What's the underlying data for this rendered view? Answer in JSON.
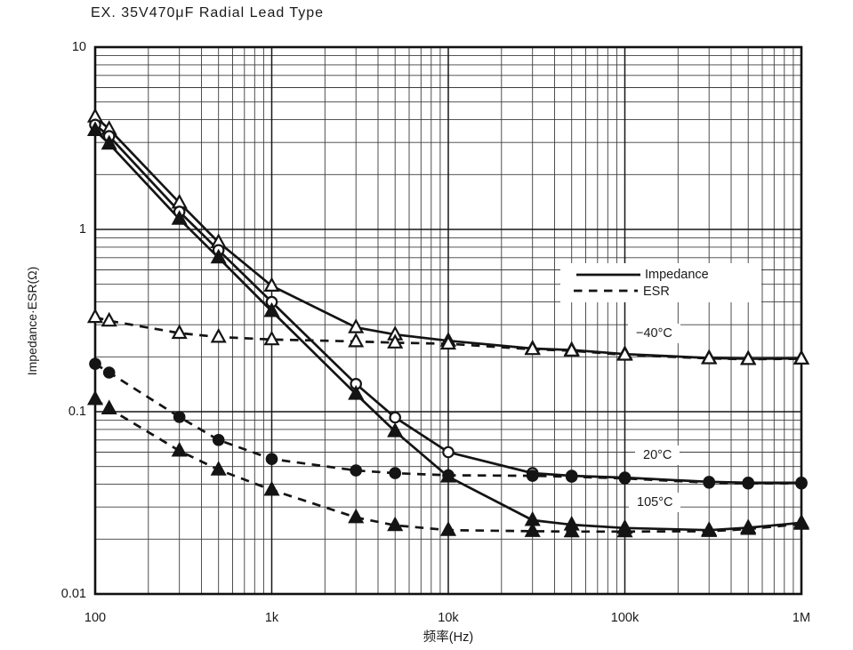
{
  "chart_data": {
    "type": "line",
    "title": "EX. 35V470μF Radial Lead Type",
    "xlabel": "频率(Hz)",
    "ylabel": "Impedance·ESR(Ω)",
    "x_scale": "log",
    "y_scale": "log",
    "xlim": [
      100,
      1000000
    ],
    "ylim": [
      0.01,
      10
    ],
    "grid": true,
    "x_ticks": [
      {
        "value": 100,
        "label": "100"
      },
      {
        "value": 1000,
        "label": "1k"
      },
      {
        "value": 10000,
        "label": "10k"
      },
      {
        "value": 100000,
        "label": "100k"
      },
      {
        "value": 1000000,
        "label": "1M"
      }
    ],
    "y_ticks": [
      {
        "value": 10,
        "label": "10"
      },
      {
        "value": 1,
        "label": "1"
      },
      {
        "value": 0.1,
        "label": "0.1"
      },
      {
        "value": 0.01,
        "label": "0.01"
      }
    ],
    "legend": {
      "position": "inside-upper-right",
      "items": [
        {
          "label": "Impedance",
          "line": "solid"
        },
        {
          "label": "ESR",
          "line": "dashed"
        }
      ]
    },
    "annotations": [
      {
        "text": "−40°C"
      },
      {
        "text": "20°C"
      },
      {
        "text": "105°C"
      }
    ],
    "x": [
      100,
      120,
      300,
      500,
      1000,
      3000,
      5000,
      10000,
      30000,
      50000,
      100000,
      300000,
      500000,
      1000000
    ],
    "series": [
      {
        "name": "ESR −40°C",
        "quantity": "ESR",
        "temperature": "−40°C",
        "line": "dashed",
        "marker": "triangle-open",
        "values": [
          0.33,
          0.315,
          0.27,
          0.257,
          0.249,
          0.243,
          0.239,
          0.236,
          0.22,
          0.216,
          0.205,
          0.196,
          0.194,
          0.195
        ]
      },
      {
        "name": "ESR 20°C",
        "quantity": "ESR",
        "temperature": "20°C",
        "line": "dashed",
        "marker": "circle-filled",
        "values": [
          0.183,
          0.164,
          0.0935,
          0.07,
          0.055,
          0.0476,
          0.046,
          0.0448,
          0.0445,
          0.044,
          0.043,
          0.0408,
          0.0404,
          0.0404
        ]
      },
      {
        "name": "ESR 105°C",
        "quantity": "ESR",
        "temperature": "105°C",
        "line": "dashed",
        "marker": "triangle-filled",
        "values": [
          0.117,
          0.104,
          0.061,
          0.048,
          0.0372,
          0.0263,
          0.0238,
          0.0224,
          0.0221,
          0.022,
          0.022,
          0.0221,
          0.0227,
          0.0242
        ]
      },
      {
        "name": "Impedance −40°C",
        "quantity": "Impedance",
        "temperature": "−40°C",
        "line": "solid",
        "marker": "triangle-open",
        "values": [
          4.15,
          3.55,
          1.4,
          0.85,
          0.49,
          0.29,
          0.265,
          0.245,
          0.222,
          0.218,
          0.207,
          0.197,
          0.195,
          0.196
        ]
      },
      {
        "name": "Impedance 20°C",
        "quantity": "Impedance",
        "temperature": "20°C",
        "line": "solid",
        "marker": "circle-open",
        "values": [
          3.75,
          3.25,
          1.25,
          0.77,
          0.4,
          0.142,
          0.093,
          0.06,
          0.046,
          0.0445,
          0.0435,
          0.0412,
          0.0408,
          0.0408
        ]
      },
      {
        "name": "Impedance 105°C",
        "quantity": "Impedance",
        "temperature": "105°C",
        "line": "solid",
        "marker": "triangle-filled",
        "values": [
          3.5,
          2.95,
          1.14,
          0.7,
          0.356,
          0.125,
          0.078,
          0.044,
          0.0254,
          0.024,
          0.023,
          0.0224,
          0.0231,
          0.0246
        ]
      }
    ]
  }
}
